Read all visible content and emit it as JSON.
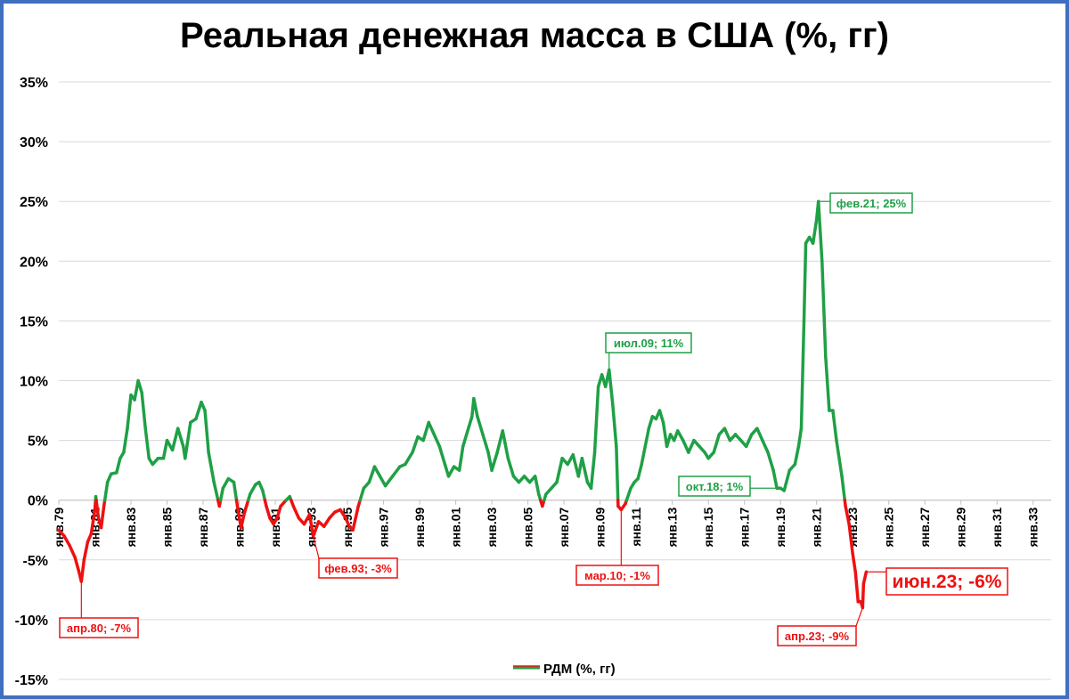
{
  "chart_data": {
    "type": "line",
    "title": "Реальная денежная масса в США (%, гг)",
    "legend": {
      "label": "РДМ (%, гг)",
      "position": "bottom"
    },
    "colors": {
      "positive": "#1fa046",
      "negative": "#ee1111",
      "grid": "#d9d9d9",
      "frame": "#3f6fbf"
    },
    "y_ticks": [
      "35%",
      "30%",
      "25%",
      "20%",
      "15%",
      "10%",
      "5%",
      "0%",
      "-5%",
      "-10%",
      "-15%"
    ],
    "ylim": [
      -15,
      35
    ],
    "x_ticks": [
      "янв.79",
      "янв.81",
      "янв.83",
      "янв.85",
      "янв.87",
      "янв.89",
      "янв.91",
      "янв.93",
      "янв.95",
      "янв.97",
      "янв.99",
      "янв.01",
      "янв.03",
      "янв.05",
      "янв.07",
      "янв.09",
      "янв.11",
      "янв.13",
      "янв.15",
      "янв.17",
      "янв.19",
      "янв.21",
      "янв.23",
      "янв.25",
      "янв.27",
      "янв.29",
      "янв.31",
      "янв.33"
    ],
    "xlim": [
      1979.0,
      2034.0
    ],
    "grid": true,
    "series": [
      {
        "name": "РДМ (%, гг)",
        "points": [
          [
            1979.0,
            -2.5
          ],
          [
            1979.3,
            -3.0
          ],
          [
            1979.6,
            -3.8
          ],
          [
            1979.9,
            -4.8
          ],
          [
            1980.1,
            -5.9
          ],
          [
            1980.25,
            -6.8
          ],
          [
            1980.4,
            -5.0
          ],
          [
            1980.6,
            -3.5
          ],
          [
            1980.8,
            -2.8
          ],
          [
            1981.0,
            -0.8
          ],
          [
            1981.05,
            0.3
          ],
          [
            1981.2,
            -1.5
          ],
          [
            1981.35,
            -2.3
          ],
          [
            1981.5,
            -0.5
          ],
          [
            1981.7,
            1.5
          ],
          [
            1981.9,
            2.2
          ],
          [
            1982.2,
            2.3
          ],
          [
            1982.4,
            3.5
          ],
          [
            1982.6,
            4.0
          ],
          [
            1982.8,
            6.0
          ],
          [
            1983.0,
            8.8
          ],
          [
            1983.2,
            8.4
          ],
          [
            1983.4,
            10.0
          ],
          [
            1983.6,
            9.0
          ],
          [
            1983.8,
            6.0
          ],
          [
            1984.0,
            3.5
          ],
          [
            1984.2,
            3.0
          ],
          [
            1984.5,
            3.5
          ],
          [
            1984.8,
            3.5
          ],
          [
            1985.0,
            5.0
          ],
          [
            1985.3,
            4.2
          ],
          [
            1985.6,
            6.0
          ],
          [
            1985.9,
            4.5
          ],
          [
            1986.0,
            3.5
          ],
          [
            1986.3,
            6.5
          ],
          [
            1986.6,
            6.8
          ],
          [
            1986.9,
            8.2
          ],
          [
            1987.1,
            7.5
          ],
          [
            1987.3,
            4.0
          ],
          [
            1987.6,
            1.5
          ],
          [
            1987.9,
            -0.5
          ],
          [
            1988.1,
            1.0
          ],
          [
            1988.4,
            1.8
          ],
          [
            1988.7,
            1.5
          ],
          [
            1988.9,
            -0.5
          ],
          [
            1989.1,
            -2.3
          ],
          [
            1989.3,
            -1.0
          ],
          [
            1989.6,
            0.5
          ],
          [
            1989.9,
            1.3
          ],
          [
            1990.1,
            1.5
          ],
          [
            1990.3,
            0.8
          ],
          [
            1990.5,
            -0.5
          ],
          [
            1990.7,
            -1.5
          ],
          [
            1990.9,
            -2.0
          ],
          [
            1991.1,
            -1.5
          ],
          [
            1991.3,
            -0.5
          ],
          [
            1991.6,
            0.0
          ],
          [
            1991.8,
            0.3
          ],
          [
            1992.0,
            -0.5
          ],
          [
            1992.3,
            -1.5
          ],
          [
            1992.6,
            -2.0
          ],
          [
            1992.9,
            -1.2
          ],
          [
            1993.1,
            -3.0
          ],
          [
            1993.4,
            -1.8
          ],
          [
            1993.7,
            -2.2
          ],
          [
            1994.0,
            -1.5
          ],
          [
            1994.3,
            -1.0
          ],
          [
            1994.6,
            -0.8
          ],
          [
            1994.9,
            -1.5
          ],
          [
            1995.1,
            -2.2
          ],
          [
            1995.3,
            -2.5
          ],
          [
            1995.6,
            -0.5
          ],
          [
            1995.9,
            1.0
          ],
          [
            1996.2,
            1.5
          ],
          [
            1996.5,
            2.8
          ],
          [
            1996.8,
            2.0
          ],
          [
            1997.1,
            1.2
          ],
          [
            1997.5,
            2.0
          ],
          [
            1997.9,
            2.8
          ],
          [
            1998.2,
            3.0
          ],
          [
            1998.6,
            4.0
          ],
          [
            1998.9,
            5.3
          ],
          [
            1999.2,
            5.0
          ],
          [
            1999.5,
            6.5
          ],
          [
            1999.8,
            5.5
          ],
          [
            2000.1,
            4.5
          ],
          [
            2000.4,
            3.0
          ],
          [
            2000.6,
            2.0
          ],
          [
            2000.9,
            2.8
          ],
          [
            2001.2,
            2.5
          ],
          [
            2001.4,
            4.5
          ],
          [
            2001.6,
            5.5
          ],
          [
            2001.9,
            7.0
          ],
          [
            2002.0,
            8.5
          ],
          [
            2002.2,
            7.0
          ],
          [
            2002.5,
            5.5
          ],
          [
            2002.8,
            4.0
          ],
          [
            2003.0,
            2.5
          ],
          [
            2003.3,
            4.0
          ],
          [
            2003.6,
            5.8
          ],
          [
            2003.9,
            3.5
          ],
          [
            2004.2,
            2.0
          ],
          [
            2004.5,
            1.5
          ],
          [
            2004.8,
            2.0
          ],
          [
            2005.1,
            1.5
          ],
          [
            2005.4,
            2.0
          ],
          [
            2005.6,
            0.5
          ],
          [
            2005.8,
            -0.5
          ],
          [
            2006.0,
            0.5
          ],
          [
            2006.3,
            1.0
          ],
          [
            2006.6,
            1.5
          ],
          [
            2006.9,
            3.5
          ],
          [
            2007.2,
            3.0
          ],
          [
            2007.5,
            3.8
          ],
          [
            2007.8,
            2.0
          ],
          [
            2008.0,
            3.5
          ],
          [
            2008.3,
            1.5
          ],
          [
            2008.5,
            1.0
          ],
          [
            2008.7,
            4.0
          ],
          [
            2008.9,
            9.5
          ],
          [
            2009.1,
            10.5
          ],
          [
            2009.3,
            9.5
          ],
          [
            2009.5,
            10.9
          ],
          [
            2009.7,
            8.0
          ],
          [
            2009.9,
            4.5
          ],
          [
            2010.0,
            -0.5
          ],
          [
            2010.17,
            -0.8
          ],
          [
            2010.4,
            -0.3
          ],
          [
            2010.7,
            1.0
          ],
          [
            2010.9,
            1.5
          ],
          [
            2011.1,
            1.8
          ],
          [
            2011.3,
            3.0
          ],
          [
            2011.5,
            4.5
          ],
          [
            2011.7,
            6.0
          ],
          [
            2011.9,
            7.0
          ],
          [
            2012.1,
            6.8
          ],
          [
            2012.3,
            7.5
          ],
          [
            2012.5,
            6.5
          ],
          [
            2012.7,
            4.5
          ],
          [
            2012.9,
            5.5
          ],
          [
            2013.1,
            5.0
          ],
          [
            2013.3,
            5.8
          ],
          [
            2013.6,
            5.0
          ],
          [
            2013.9,
            4.0
          ],
          [
            2014.2,
            5.0
          ],
          [
            2014.5,
            4.5
          ],
          [
            2014.8,
            4.0
          ],
          [
            2015.0,
            3.5
          ],
          [
            2015.3,
            4.0
          ],
          [
            2015.6,
            5.5
          ],
          [
            2015.9,
            6.0
          ],
          [
            2016.2,
            5.0
          ],
          [
            2016.5,
            5.5
          ],
          [
            2016.8,
            5.0
          ],
          [
            2017.1,
            4.5
          ],
          [
            2017.4,
            5.5
          ],
          [
            2017.7,
            6.0
          ],
          [
            2018.0,
            5.0
          ],
          [
            2018.3,
            4.0
          ],
          [
            2018.6,
            2.5
          ],
          [
            2018.8,
            1.0
          ],
          [
            2019.0,
            1.0
          ],
          [
            2019.2,
            0.8
          ],
          [
            2019.5,
            2.5
          ],
          [
            2019.8,
            3.0
          ],
          [
            2020.0,
            4.5
          ],
          [
            2020.15,
            6.0
          ],
          [
            2020.3,
            15.0
          ],
          [
            2020.4,
            21.5
          ],
          [
            2020.6,
            22.0
          ],
          [
            2020.8,
            21.5
          ],
          [
            2021.0,
            23.5
          ],
          [
            2021.1,
            25.0
          ],
          [
            2021.3,
            20.0
          ],
          [
            2021.5,
            12.0
          ],
          [
            2021.7,
            7.5
          ],
          [
            2021.9,
            7.5
          ],
          [
            2022.1,
            5.0
          ],
          [
            2022.4,
            2.0
          ],
          [
            2022.6,
            -0.5
          ],
          [
            2022.8,
            -2.0
          ],
          [
            2023.0,
            -4.5
          ],
          [
            2023.15,
            -6.0
          ],
          [
            2023.3,
            -8.5
          ],
          [
            2023.45,
            -8.5
          ],
          [
            2023.55,
            -9.0
          ],
          [
            2023.6,
            -7.0
          ],
          [
            2023.75,
            -6.0
          ]
        ]
      }
    ],
    "annotations": [
      {
        "label": "апр.80; -7%",
        "x": 1980.25,
        "y": -6.8,
        "color": "negative"
      },
      {
        "label": "фев.93; -3%",
        "x": 1993.1,
        "y": -3.0,
        "color": "negative"
      },
      {
        "label": "июл.09; 11%",
        "x": 2009.5,
        "y": 10.9,
        "color": "positive"
      },
      {
        "label": "мар.10; -1%",
        "x": 2010.17,
        "y": -0.8,
        "color": "negative"
      },
      {
        "label": "окт.18; 1%",
        "x": 2018.8,
        "y": 1.0,
        "color": "positive"
      },
      {
        "label": "фев.21; 25%",
        "x": 2021.1,
        "y": 25.0,
        "color": "positive"
      },
      {
        "label": "апр.23; -9%",
        "x": 2023.55,
        "y": -9.0,
        "color": "negative"
      },
      {
        "label": "июн.23; -6%",
        "x": 2023.75,
        "y": -6.0,
        "color": "negative",
        "large": true
      }
    ]
  }
}
